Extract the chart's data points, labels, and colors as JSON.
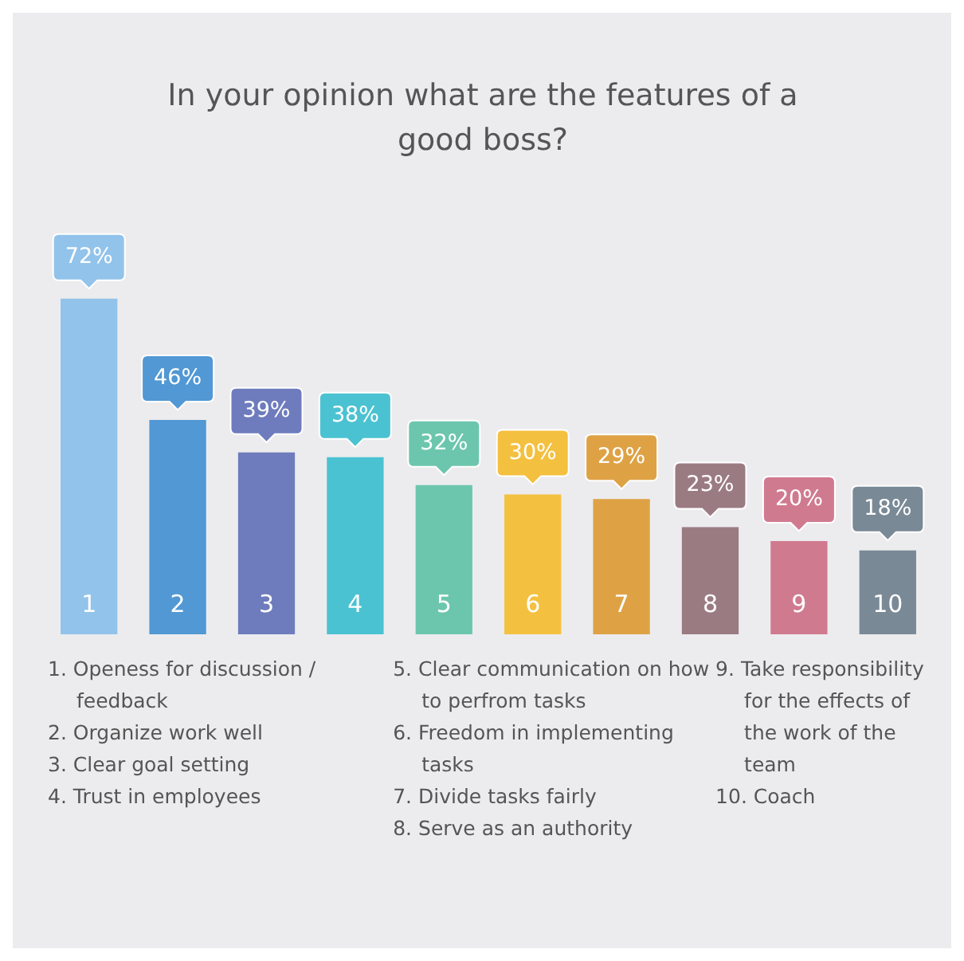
{
  "chart_data": {
    "type": "bar",
    "title": "In your opinion what are the features of a good boss?",
    "categories": [
      "1",
      "2",
      "3",
      "4",
      "5",
      "6",
      "7",
      "8",
      "9",
      "10"
    ],
    "values": [
      72,
      46,
      39,
      38,
      32,
      30,
      29,
      23,
      20,
      18
    ],
    "value_labels": [
      "72%",
      "46%",
      "39%",
      "38%",
      "32%",
      "30%",
      "29%",
      "23%",
      "20%",
      "18%"
    ],
    "colors": [
      "#92c3ea",
      "#5198d4",
      "#6e7cbd",
      "#4bc2d1",
      "#6cc6ad",
      "#f4c03f",
      "#dea245",
      "#9b7b82",
      "#d07a90",
      "#7a8996"
    ],
    "legend": false,
    "annotations": [
      "1. Openess for discussion / feedback",
      "2. Organize work well",
      "3. Clear goal setting",
      "4. Trust in employees",
      "5. Clear communication on how to perfrom tasks",
      "6. Freedom in implementing tasks",
      "7. Divide tasks fairly",
      "8. Serve as an authority",
      "9. Take responsibility for the effects of the work of the team",
      "10. Coach"
    ]
  }
}
